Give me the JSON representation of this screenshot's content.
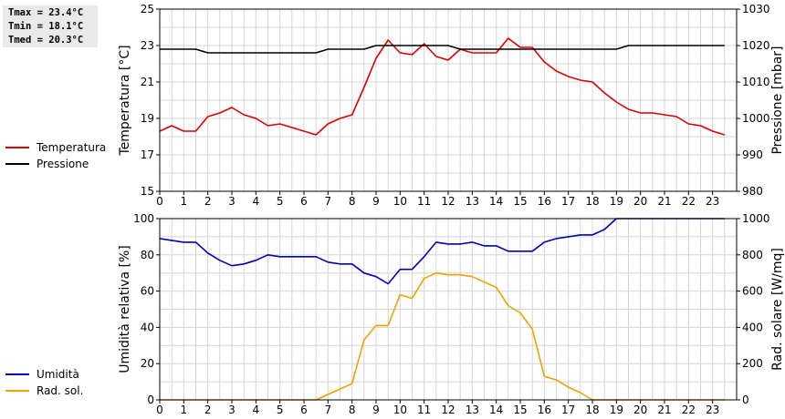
{
  "stats": {
    "tmax": "Tmax = 23.4°C",
    "tmin": "Tmin = 18.1°C",
    "tmed": "Tmed = 20.3°C"
  },
  "legend_top": [
    {
      "label": "Temperatura",
      "color": "#dd0000"
    },
    {
      "label": "Pressione",
      "color": "#000000"
    }
  ],
  "legend_bottom": [
    {
      "label": "Umidità",
      "color": "#0000bb"
    },
    {
      "label": "Rad. sol.",
      "color": "#f0a000"
    }
  ],
  "chart_data": [
    {
      "type": "line",
      "ylabel": "Temperatura [°C]",
      "y2label": "Pressione [mbar]",
      "xlim": [
        0,
        24
      ],
      "ylim": [
        15,
        25
      ],
      "y2lim": [
        980,
        1030
      ],
      "xticks": [
        "0",
        "1",
        "2",
        "3",
        "4",
        "5",
        "6",
        "7",
        "8",
        "9",
        "10",
        "11",
        "12",
        "13",
        "14",
        "15",
        "16",
        "17",
        "18",
        "19",
        "20",
        "21",
        "22",
        "23"
      ],
      "yticks": [
        "15",
        "17",
        "19",
        "21",
        "23",
        "25"
      ],
      "y2ticks": [
        "980",
        "990",
        "1000",
        "1010",
        "1020",
        "1030"
      ],
      "grid": true,
      "series": [
        {
          "name": "Temperatura",
          "axis": "left",
          "color": "#dd0000",
          "x": [
            0,
            0.5,
            1,
            1.5,
            2,
            2.5,
            3,
            3.5,
            4,
            4.5,
            5,
            5.5,
            6,
            6.5,
            7,
            7.5,
            8,
            8.5,
            9,
            9.5,
            10,
            10.5,
            11,
            11.5,
            12,
            12.5,
            13,
            13.5,
            14,
            14.5,
            15,
            15.5,
            16,
            16.5,
            17,
            17.5,
            18,
            18.5,
            19,
            19.5,
            20,
            20.5,
            21,
            21.5,
            22,
            22.5,
            23,
            23.5
          ],
          "values": [
            18.3,
            18.6,
            18.3,
            18.3,
            19.1,
            19.3,
            19.6,
            19.2,
            19.0,
            18.6,
            18.7,
            18.5,
            18.3,
            18.1,
            18.7,
            19.0,
            19.2,
            20.7,
            22.3,
            23.3,
            22.6,
            22.5,
            23.1,
            22.4,
            22.2,
            22.8,
            22.6,
            22.6,
            22.6,
            23.4,
            22.9,
            22.9,
            22.1,
            21.6,
            21.3,
            21.1,
            21.0,
            20.4,
            19.9,
            19.5,
            19.3,
            19.3,
            19.2,
            19.1,
            18.7,
            18.6,
            18.3,
            18.1
          ]
        },
        {
          "name": "Pressione",
          "axis": "right",
          "color": "#000000",
          "x": [
            0,
            0.5,
            1,
            1.5,
            2,
            2.5,
            3,
            3.5,
            4,
            4.5,
            5,
            5.5,
            6,
            6.5,
            7,
            7.5,
            8,
            8.5,
            9,
            9.5,
            10,
            10.5,
            11,
            11.5,
            12,
            12.5,
            13,
            13.5,
            14,
            14.5,
            15,
            15.5,
            16,
            16.5,
            17,
            17.5,
            18,
            18.5,
            19,
            19.5,
            20,
            20.5,
            21,
            21.5,
            22,
            22.5,
            23,
            23.5
          ],
          "values": [
            1019,
            1019,
            1019,
            1019,
            1018,
            1018,
            1018,
            1018,
            1018,
            1018,
            1018,
            1018,
            1018,
            1018,
            1019,
            1019,
            1019,
            1019,
            1020,
            1020,
            1020,
            1020,
            1020,
            1020,
            1020,
            1019,
            1019,
            1019,
            1019,
            1019,
            1019,
            1019,
            1019,
            1019,
            1019,
            1019,
            1019,
            1019,
            1019,
            1020,
            1020,
            1020,
            1020,
            1020,
            1020,
            1020,
            1020,
            1020
          ]
        }
      ]
    },
    {
      "type": "line",
      "ylabel": "Umidità relativa [%]",
      "y2label": "Rad. solare [W/mq]",
      "xlim": [
        0,
        24
      ],
      "ylim": [
        0,
        100
      ],
      "y2lim": [
        0,
        1000
      ],
      "xticks": [
        "0",
        "1",
        "2",
        "3",
        "4",
        "5",
        "6",
        "7",
        "8",
        "9",
        "10",
        "11",
        "12",
        "13",
        "14",
        "15",
        "16",
        "17",
        "18",
        "19",
        "20",
        "21",
        "22",
        "23"
      ],
      "yticks": [
        "0",
        "20",
        "40",
        "60",
        "80",
        "100"
      ],
      "y2ticks": [
        "0",
        "200",
        "400",
        "600",
        "800",
        "1000"
      ],
      "grid": true,
      "series": [
        {
          "name": "Umidità",
          "axis": "left",
          "color": "#0000bb",
          "x": [
            0,
            0.5,
            1,
            1.5,
            2,
            2.5,
            3,
            3.5,
            4,
            4.5,
            5,
            5.5,
            6,
            6.5,
            7,
            7.5,
            8,
            8.5,
            9,
            9.5,
            10,
            10.5,
            11,
            11.5,
            12,
            12.5,
            13,
            13.5,
            14,
            14.5,
            15,
            15.5,
            16,
            16.5,
            17,
            17.5,
            18,
            18.5,
            19,
            19.5,
            20,
            20.5,
            21,
            21.5,
            22,
            22.5,
            23,
            23.5
          ],
          "values": [
            89,
            88,
            87,
            87,
            81,
            77,
            74,
            75,
            77,
            80,
            79,
            79,
            79,
            79,
            76,
            75,
            75,
            70,
            68,
            64,
            72,
            72,
            79,
            87,
            86,
            86,
            87,
            85,
            85,
            82,
            82,
            82,
            87,
            89,
            90,
            91,
            91,
            94,
            100,
            100,
            100,
            100,
            100,
            100,
            100,
            100,
            100,
            100
          ]
        },
        {
          "name": "Rad. sol.",
          "axis": "right",
          "color": "#f0a000",
          "x": [
            0,
            0.5,
            1,
            1.5,
            2,
            2.5,
            3,
            3.5,
            4,
            4.5,
            5,
            5.5,
            6,
            6.5,
            7,
            7.5,
            8,
            8.5,
            9,
            9.5,
            10,
            10.5,
            11,
            11.5,
            12,
            12.5,
            13,
            13.5,
            14,
            14.5,
            15,
            15.5,
            16,
            16.5,
            17,
            17.5,
            18,
            18.5,
            19,
            19.5,
            20,
            20.5,
            21,
            21.5,
            22,
            22.5,
            23,
            23.5
          ],
          "values": [
            0,
            0,
            0,
            0,
            0,
            0,
            0,
            0,
            0,
            0,
            0,
            0,
            0,
            0,
            30,
            60,
            90,
            330,
            410,
            410,
            580,
            560,
            670,
            700,
            690,
            690,
            680,
            650,
            620,
            520,
            480,
            390,
            130,
            110,
            70,
            40,
            0,
            0,
            0,
            0,
            0,
            0,
            0,
            0,
            0,
            0,
            0,
            0
          ]
        }
      ]
    }
  ]
}
